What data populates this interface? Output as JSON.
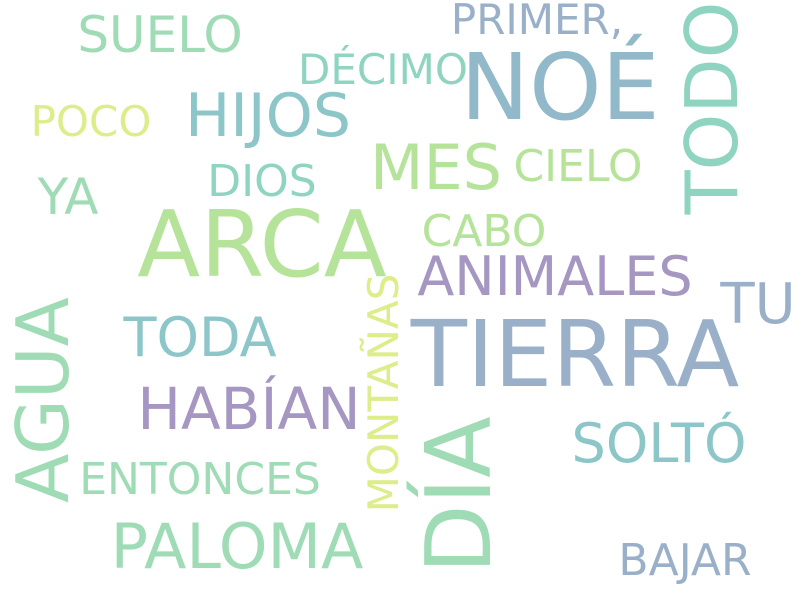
{
  "words": {
    "arca": "ARCA",
    "tierra": "TIERRA",
    "noe": "NOÉ",
    "dia": "DÍA",
    "todo": "TODO",
    "agua": "AGUA",
    "hijos": "HIJOS",
    "mes": "MES",
    "suelo": "SUELO",
    "primer": "PRIMER,",
    "decimo": "DÉCIMO",
    "poco": "POCO",
    "ya": "YA",
    "dios": "DIOS",
    "cielo": "CIELO",
    "cabo": "CABO",
    "animales": "ANIMALES",
    "tu": "TU",
    "toda": "TODA",
    "montanas": "MONTAÑAS",
    "habian": "HABÍAN",
    "solto": "SOLTÓ",
    "entonces": "ENTONCES",
    "paloma": "PALOMA",
    "bajar": "BAJAR"
  },
  "colors": {
    "light_green": "#b6e39a",
    "mint": "#9fdcb5",
    "seafoam": "#8fd4c0",
    "teal": "#8cc6c8",
    "blue_gray": "#91b9c9",
    "slate": "#9ab0c9",
    "purple": "#a596c2",
    "yellow_green": "#dded8a"
  }
}
